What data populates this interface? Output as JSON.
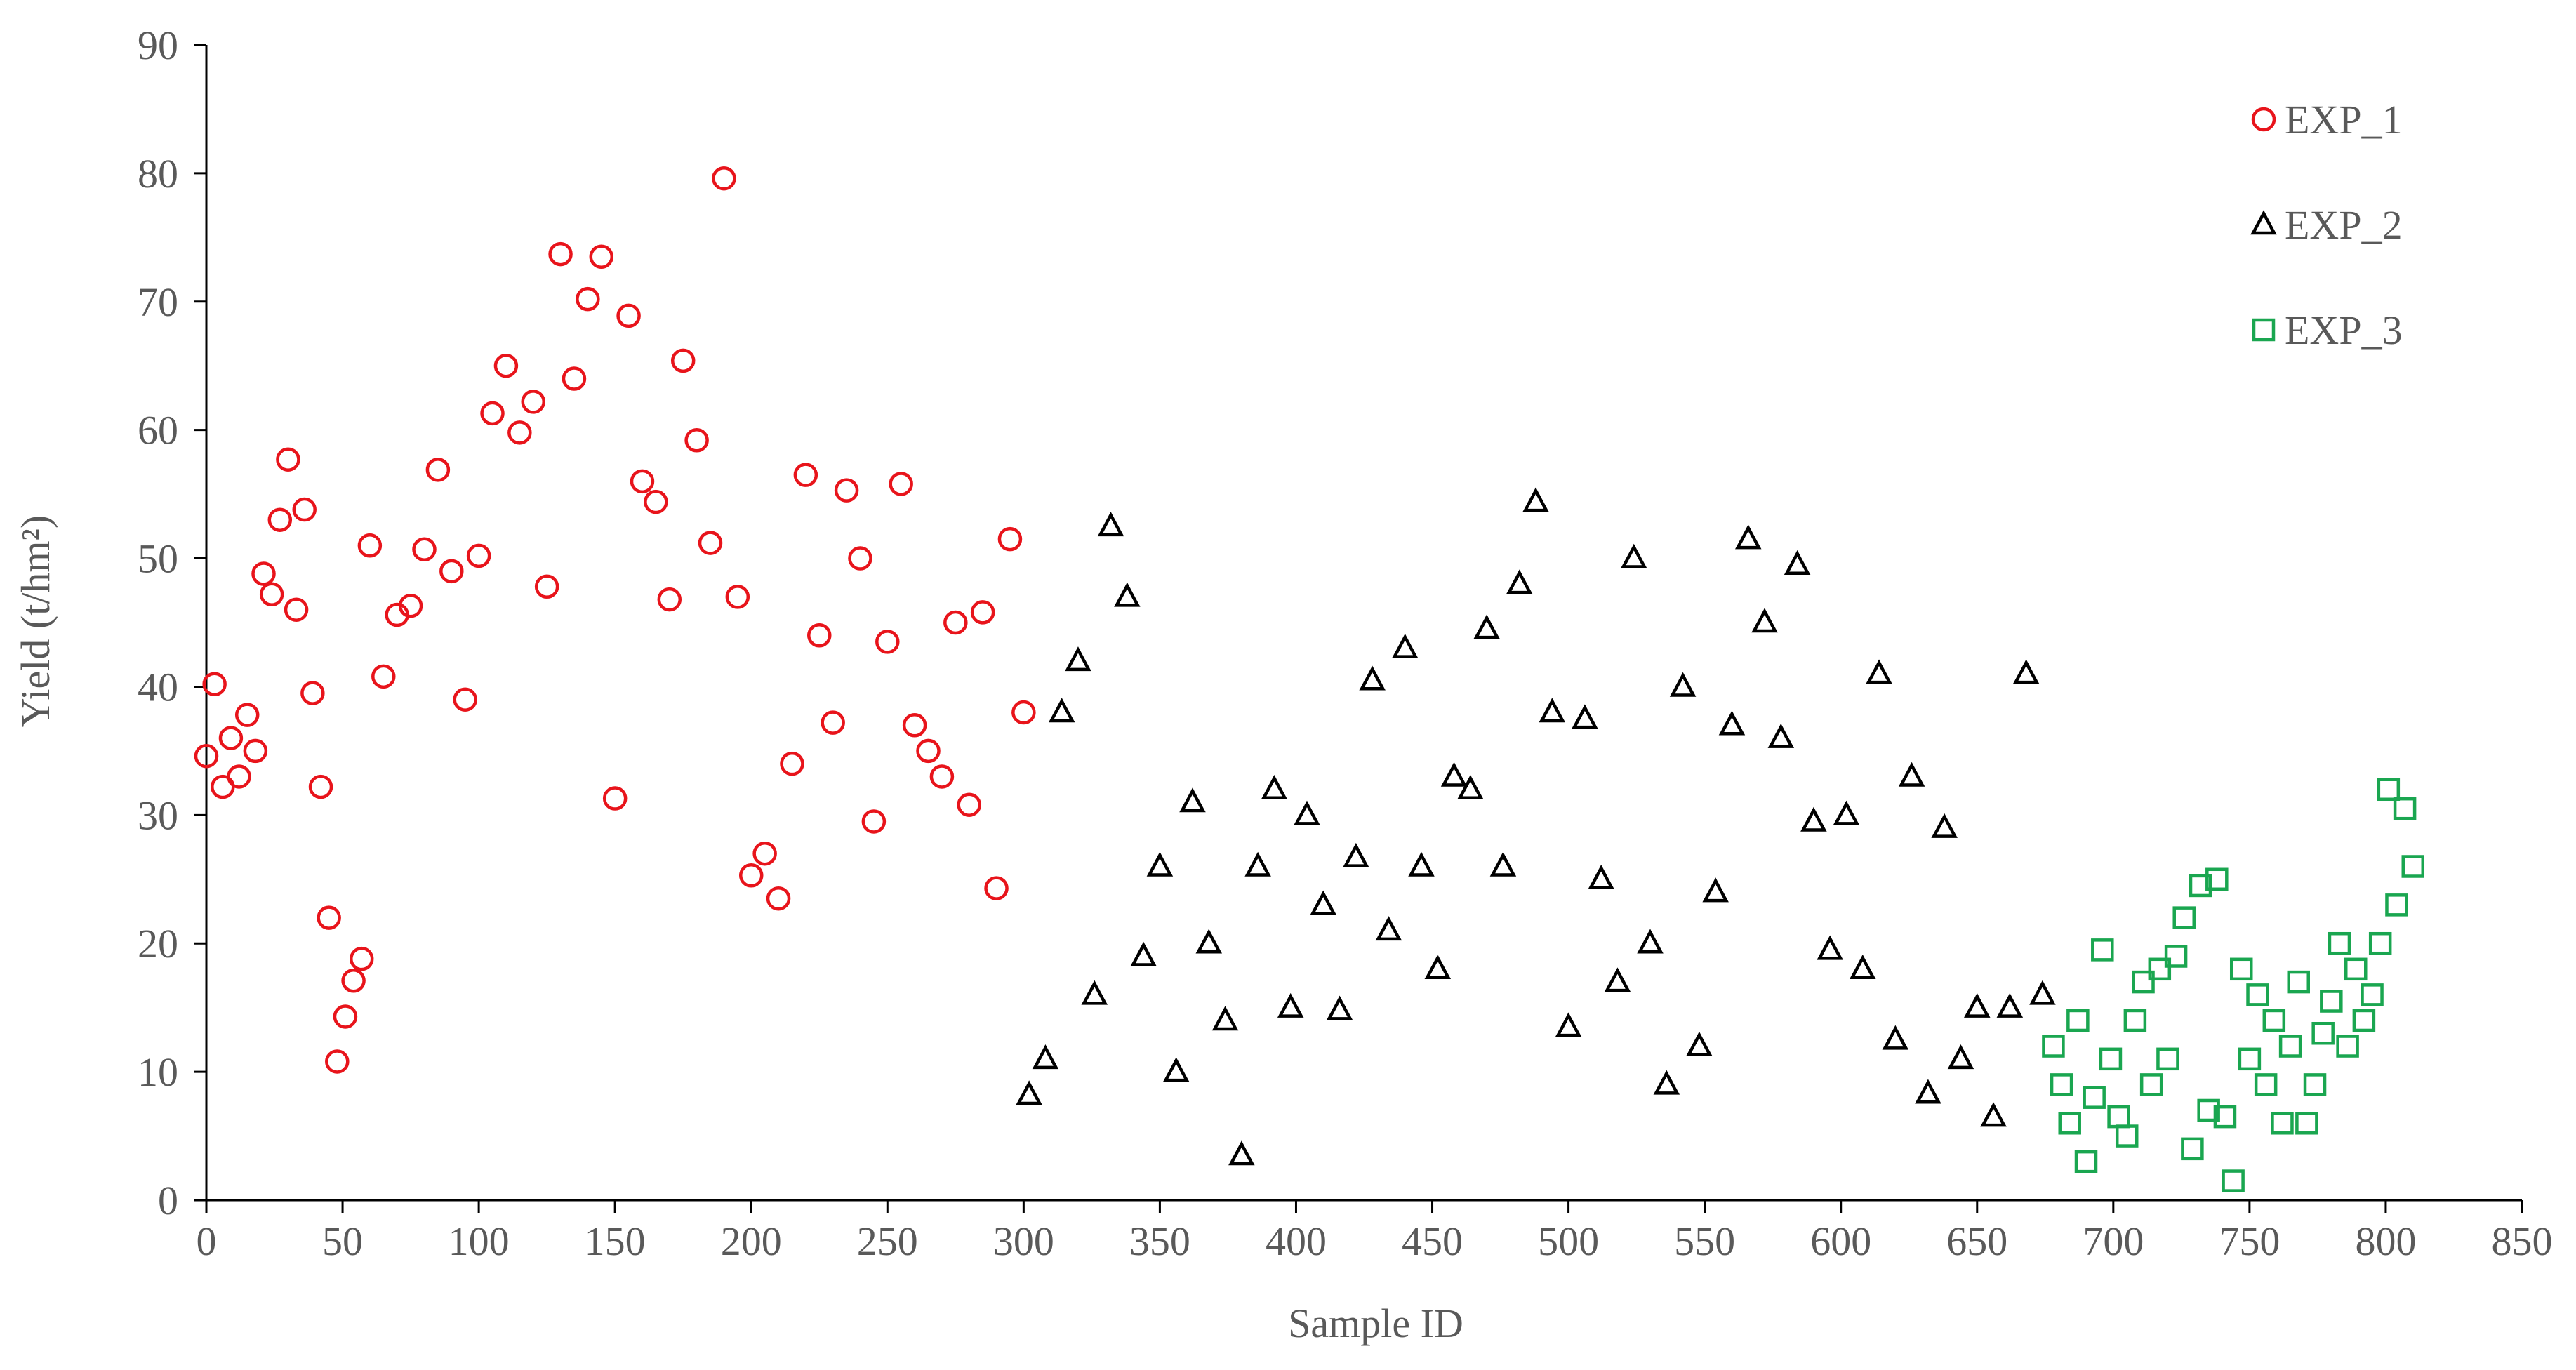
{
  "chart_data": {
    "type": "scatter",
    "x_label": "Sample ID",
    "y_label": "Yield (t/hm²)",
    "xlim": [
      0,
      850
    ],
    "xticks": [
      0,
      50,
      100,
      150,
      200,
      250,
      300,
      350,
      400,
      450,
      500,
      550,
      600,
      650,
      700,
      750,
      800,
      850
    ],
    "ylim": [
      0,
      90
    ],
    "yticks": [
      0,
      10,
      20,
      30,
      40,
      50,
      60,
      70,
      80,
      90
    ],
    "legend": "top-right",
    "series": [
      {
        "name": "EXP_1",
        "color": "#e8141b",
        "marker": "circle",
        "x": [
          0,
          3,
          6,
          9,
          12,
          15,
          18,
          21,
          24,
          27,
          30,
          33,
          36,
          39,
          42,
          45,
          48,
          51,
          54,
          57,
          60,
          65,
          70,
          75,
          80,
          85,
          90,
          95,
          100,
          105,
          110,
          115,
          120,
          125,
          130,
          135,
          140,
          145,
          150,
          155,
          160,
          165,
          170,
          175,
          180,
          185,
          190,
          195,
          200,
          205,
          210,
          215,
          220,
          225,
          230,
          235,
          240,
          245,
          250,
          255,
          260,
          265,
          270,
          275,
          280,
          285,
          290,
          295,
          300
        ],
        "values": [
          34.6,
          40.2,
          32.2,
          36,
          33,
          37.8,
          35,
          48.8,
          47.2,
          53,
          57.7,
          46,
          53.8,
          39.5,
          32.2,
          22,
          10.8,
          14.3,
          17.1,
          18.8,
          51,
          40.8,
          45.6,
          46.3,
          50.7,
          56.9,
          49,
          39,
          50.2,
          61.3,
          65,
          59.8,
          62.2,
          47.8,
          73.7,
          64,
          70.2,
          73.5,
          31.3,
          68.9,
          56,
          54.4,
          46.8,
          65.4,
          59.2,
          51.2,
          79.6,
          47,
          25.3,
          27,
          23.5,
          34,
          56.5,
          44,
          37.2,
          55.3,
          50,
          29.5,
          43.5,
          55.8,
          37,
          35,
          33,
          45,
          30.8,
          45.8,
          24.3,
          51.5,
          38
        ]
      },
      {
        "name": "EXP_2",
        "color": "#000000",
        "marker": "triangle",
        "x": [
          302,
          308,
          314,
          320,
          326,
          332,
          338,
          344,
          350,
          356,
          362,
          368,
          374,
          380,
          386,
          392,
          398,
          404,
          410,
          416,
          422,
          428,
          434,
          440,
          446,
          452,
          458,
          464,
          470,
          476,
          482,
          488,
          494,
          500,
          506,
          512,
          518,
          524,
          530,
          536,
          542,
          548,
          554,
          560,
          566,
          572,
          578,
          584,
          590,
          596,
          602,
          608,
          614,
          620,
          626,
          632,
          638,
          644,
          650,
          656,
          662,
          668,
          674
        ],
        "values": [
          8.2,
          11,
          38,
          42,
          16,
          52.5,
          47,
          19,
          26,
          10,
          31,
          20,
          14,
          3.5,
          26,
          32,
          15,
          30,
          23,
          14.8,
          26.7,
          40.5,
          21,
          43,
          26,
          18,
          33,
          32,
          44.5,
          26,
          48,
          54.4,
          38,
          13.5,
          37.5,
          25,
          17,
          50,
          20,
          9,
          40,
          12,
          24,
          37,
          51.5,
          45,
          36,
          49.5,
          29.5,
          19.5,
          30,
          18,
          41,
          12.5,
          33,
          8.3,
          29,
          11,
          15,
          6.5,
          15,
          41,
          16
        ]
      },
      {
        "name": "EXP_3",
        "color": "#1aa650",
        "marker": "square",
        "x": [
          678,
          681,
          684,
          687,
          690,
          693,
          696,
          699,
          702,
          705,
          708,
          711,
          714,
          717,
          720,
          723,
          726,
          729,
          732,
          735,
          738,
          741,
          744,
          747,
          750,
          753,
          756,
          759,
          762,
          765,
          768,
          771,
          774,
          777,
          780,
          783,
          786,
          789,
          792,
          795,
          798,
          801,
          804,
          807,
          810
        ],
        "values": [
          12,
          9,
          6,
          14,
          3,
          8,
          19.5,
          11,
          6.5,
          5,
          14,
          17,
          9,
          18,
          11,
          19,
          22,
          4,
          24.5,
          7,
          25,
          6.5,
          1.5,
          18,
          11,
          16,
          9,
          14,
          6,
          12,
          17,
          6,
          9,
          13,
          15.5,
          20,
          12,
          18,
          14,
          16,
          20,
          32,
          23,
          30.5,
          26
        ]
      }
    ]
  }
}
